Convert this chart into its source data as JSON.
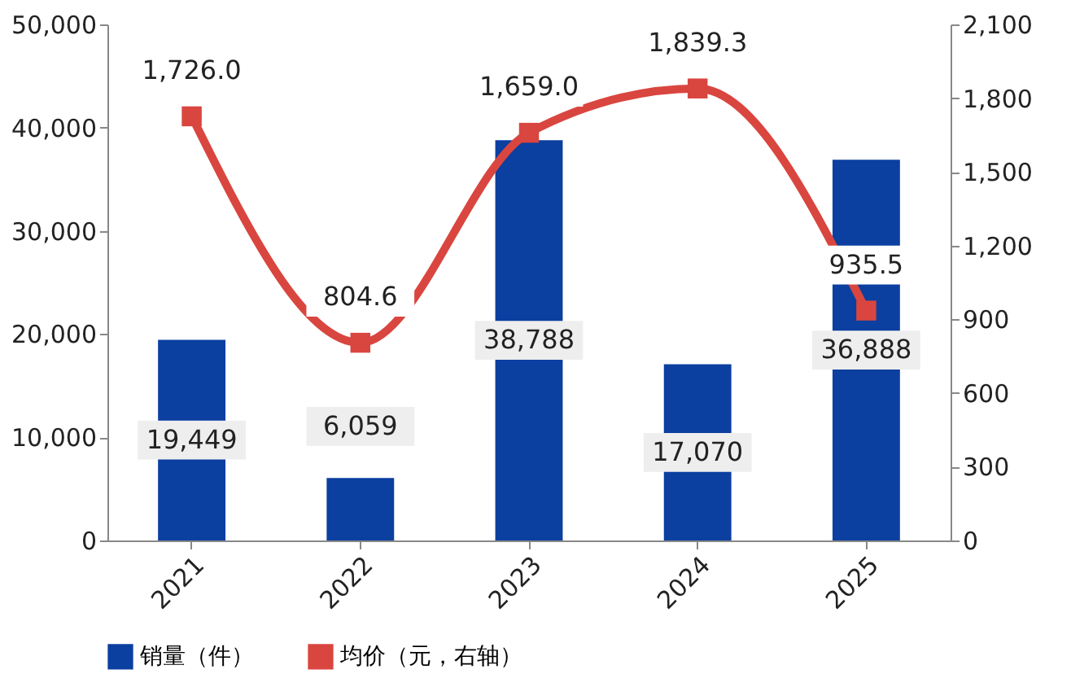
{
  "chart_data": {
    "type": "bar",
    "categories": [
      "2021",
      "2022",
      "2023",
      "2024",
      "2025"
    ],
    "series": [
      {
        "name": "销量（件）",
        "color": "#0b3fa0",
        "values": [
          19449,
          6059,
          38788,
          17070,
          36888
        ],
        "value_labels": [
          "19,449",
          "6,059",
          "38,788",
          "17,070",
          "36,888"
        ]
      },
      {
        "name": "均价（元，右轴）",
        "type": "line",
        "axis": "y2",
        "color": "#d9463f",
        "values": [
          1726.0,
          804.6,
          1659.0,
          1839.3,
          935.5
        ],
        "value_labels": [
          "1,726.0",
          "804.6",
          "1,659.0",
          "1,839.3",
          "935.5"
        ],
        "marker": "square",
        "line_style": "solid"
      }
    ],
    "ylim": [
      0,
      50000
    ],
    "yticks": [
      0,
      {
        "value": 10000,
        "label": "10,000"
      },
      {
        "value": 20000,
        "label": "20,000"
      },
      {
        "value": 30000,
        "label": "30,000"
      },
      {
        "value": 40000,
        "label": "40,000"
      },
      {
        "value": 50000,
        "label": "50,000"
      }
    ],
    "y2lim": [
      0,
      2100
    ],
    "y2ticks": [
      0,
      300,
      600,
      900,
      {
        "value": 1200,
        "label": "1,200"
      },
      {
        "value": 1500,
        "label": "1,500"
      },
      {
        "value": 1800,
        "label": "1,800"
      },
      {
        "value": 2100,
        "label": "2,100"
      }
    ],
    "grid": false,
    "legend": "bottom"
  }
}
